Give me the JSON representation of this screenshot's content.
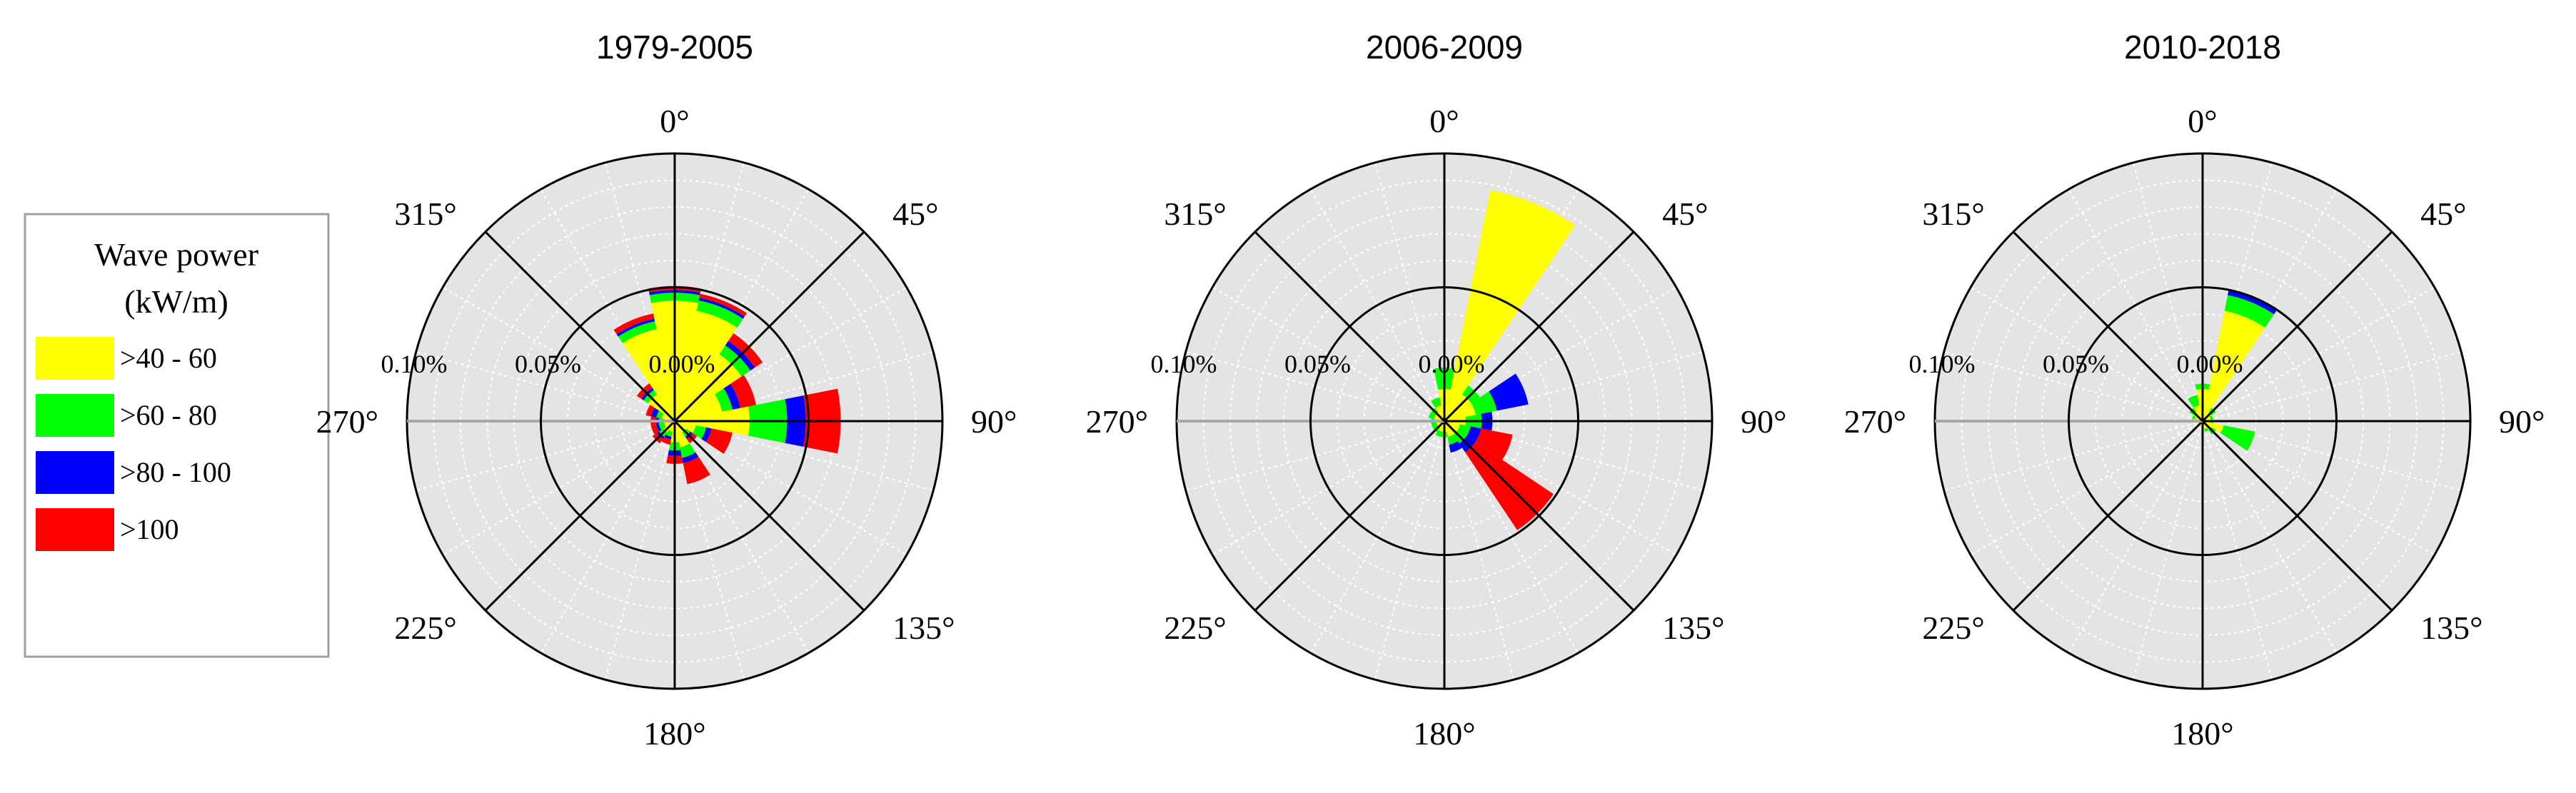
{
  "legend": {
    "title_line1": "Wave power",
    "title_line2": "(kW/m)",
    "items": [
      {
        "label": ">40 - 60",
        "color": "#ffff00"
      },
      {
        "label": ">60 - 80",
        "color": "#00ff00"
      },
      {
        "label": ">80 - 100",
        "color": "#0000ff"
      },
      {
        "label": ">100",
        "color": "#ff0000"
      }
    ]
  },
  "chart_data": [
    {
      "type": "polar-rose",
      "title": "1979-2005",
      "direction_labels": [
        "0°",
        "45°",
        "90°",
        "135°",
        "180°",
        "225°",
        "270°",
        "315°"
      ],
      "radial_tick_labels": [
        "0.00%",
        "0.05%",
        "0.10%"
      ],
      "rmax": 0.1,
      "sector_width_deg": 22.5,
      "series": [
        "yellow",
        "green",
        "blue",
        "red"
      ],
      "sectors": [
        {
          "dir": 0,
          "values": [
            0.045,
            0.003,
            0.001,
            0.0015
          ]
        },
        {
          "dir": 22.5,
          "values": [
            0.042,
            0.004,
            0.001,
            0.0015
          ]
        },
        {
          "dir": 45,
          "values": [
            0.03,
            0.004,
            0.002,
            0.0035
          ]
        },
        {
          "dir": 67.5,
          "values": [
            0.018,
            0.004,
            0.003,
            0.006
          ]
        },
        {
          "dir": 90,
          "values": [
            0.028,
            0.014,
            0.007,
            0.013
          ]
        },
        {
          "dir": 112.5,
          "values": [
            0.008,
            0.004,
            0.002,
            0.008
          ]
        },
        {
          "dir": 135,
          "values": [
            0.005,
            0.002,
            0.001,
            0.002
          ]
        },
        {
          "dir": 157.5,
          "values": [
            0.01,
            0.004,
            0.002,
            0.008
          ]
        },
        {
          "dir": 180,
          "values": [
            0.008,
            0.003,
            0.002,
            0.003
          ]
        },
        {
          "dir": 202.5,
          "values": [
            0.004,
            0.002,
            0.001,
            0.002
          ]
        },
        {
          "dir": 225,
          "values": [
            0.005,
            0.002,
            0.001,
            0.002
          ]
        },
        {
          "dir": 247.5,
          "values": [
            0.004,
            0.002,
            0.001,
            0.002
          ]
        },
        {
          "dir": 270,
          "values": [
            0.004,
            0.002,
            0.001,
            0.002
          ]
        },
        {
          "dir": 292.5,
          "values": [
            0.005,
            0.002,
            0.002,
            0.002
          ]
        },
        {
          "dir": 315,
          "values": [
            0.012,
            0.002,
            0.001,
            0.002
          ]
        },
        {
          "dir": 337.5,
          "values": [
            0.035,
            0.003,
            0.001,
            0.002
          ]
        }
      ]
    },
    {
      "type": "polar-rose",
      "title": "2006-2009",
      "direction_labels": [
        "0°",
        "45°",
        "90°",
        "135°",
        "180°",
        "225°",
        "270°",
        "315°"
      ],
      "radial_tick_labels": [
        "0.00%",
        "0.05%",
        "0.10%"
      ],
      "rmax": 0.1,
      "sector_width_deg": 22.5,
      "series": [
        "yellow",
        "green",
        "blue",
        "red"
      ],
      "sectors": [
        {
          "dir": 0,
          "values": [
            0.012,
            0.008,
            0,
            0
          ]
        },
        {
          "dir": 22.5,
          "values": [
            0.088,
            0,
            0,
            0
          ]
        },
        {
          "dir": 45,
          "values": [
            0.012,
            0.004,
            0,
            0
          ]
        },
        {
          "dir": 67.5,
          "values": [
            0.012,
            0.008,
            0.012,
            0
          ]
        },
        {
          "dir": 90,
          "values": [
            0.008,
            0.006,
            0.004,
            0
          ]
        },
        {
          "dir": 112.5,
          "values": [
            0.006,
            0.004,
            0.004,
            0.012
          ]
        },
        {
          "dir": 135,
          "values": [
            0.006,
            0.004,
            0.004,
            0.035
          ]
        },
        {
          "dir": 157.5,
          "values": [
            0.006,
            0.003,
            0.003,
            0
          ]
        },
        {
          "dir": 180,
          "values": [
            0.004,
            0.002,
            0,
            0
          ]
        },
        {
          "dir": 202.5,
          "values": [
            0.004,
            0.002,
            0,
            0
          ]
        },
        {
          "dir": 225,
          "values": [
            0.003,
            0.002,
            0,
            0
          ]
        },
        {
          "dir": 247.5,
          "values": [
            0.003,
            0.002,
            0,
            0
          ]
        },
        {
          "dir": 270,
          "values": [
            0.003,
            0.002,
            0,
            0
          ]
        },
        {
          "dir": 292.5,
          "values": [
            0.004,
            0.002,
            0,
            0
          ]
        },
        {
          "dir": 315,
          "values": [
            0.004,
            0.002,
            0,
            0
          ]
        },
        {
          "dir": 337.5,
          "values": [
            0.006,
            0.003,
            0,
            0
          ]
        }
      ]
    },
    {
      "type": "polar-rose",
      "title": "2010-2018",
      "direction_labels": [
        "0°",
        "45°",
        "90°",
        "135°",
        "180°",
        "225°",
        "270°",
        "315°"
      ],
      "radial_tick_labels": [
        "0.00%",
        "0.05%",
        "0.10%"
      ],
      "rmax": 0.1,
      "sector_width_deg": 22.5,
      "series": [
        "yellow",
        "green",
        "blue",
        "red"
      ],
      "sectors": [
        {
          "dir": 0,
          "values": [
            0.012,
            0.002,
            0,
            0
          ]
        },
        {
          "dir": 22.5,
          "values": [
            0.042,
            0.006,
            0.002,
            0
          ]
        },
        {
          "dir": 45,
          "values": [
            0.004,
            0.002,
            0,
            0
          ]
        },
        {
          "dir": 67.5,
          "values": [
            0.003,
            0.001,
            0,
            0
          ]
        },
        {
          "dir": 90,
          "values": [
            0.003,
            0.001,
            0,
            0
          ]
        },
        {
          "dir": 112.5,
          "values": [
            0.008,
            0.012,
            0,
            0
          ]
        },
        {
          "dir": 135,
          "values": [
            0.004,
            0.002,
            0,
            0
          ]
        },
        {
          "dir": 157.5,
          "values": [
            0.003,
            0.001,
            0,
            0
          ]
        },
        {
          "dir": 180,
          "values": [
            0.003,
            0,
            0,
            0
          ]
        },
        {
          "dir": 202.5,
          "values": [
            0.002,
            0,
            0,
            0
          ]
        },
        {
          "dir": 225,
          "values": [
            0.002,
            0,
            0,
            0
          ]
        },
        {
          "dir": 247.5,
          "values": [
            0.002,
            0,
            0,
            0
          ]
        },
        {
          "dir": 270,
          "values": [
            0.003,
            0,
            0,
            0
          ]
        },
        {
          "dir": 292.5,
          "values": [
            0.003,
            0.001,
            0,
            0
          ]
        },
        {
          "dir": 315,
          "values": [
            0.004,
            0.002,
            0,
            0
          ]
        },
        {
          "dir": 337.5,
          "values": [
            0.006,
            0.004,
            0,
            0
          ]
        }
      ]
    }
  ]
}
